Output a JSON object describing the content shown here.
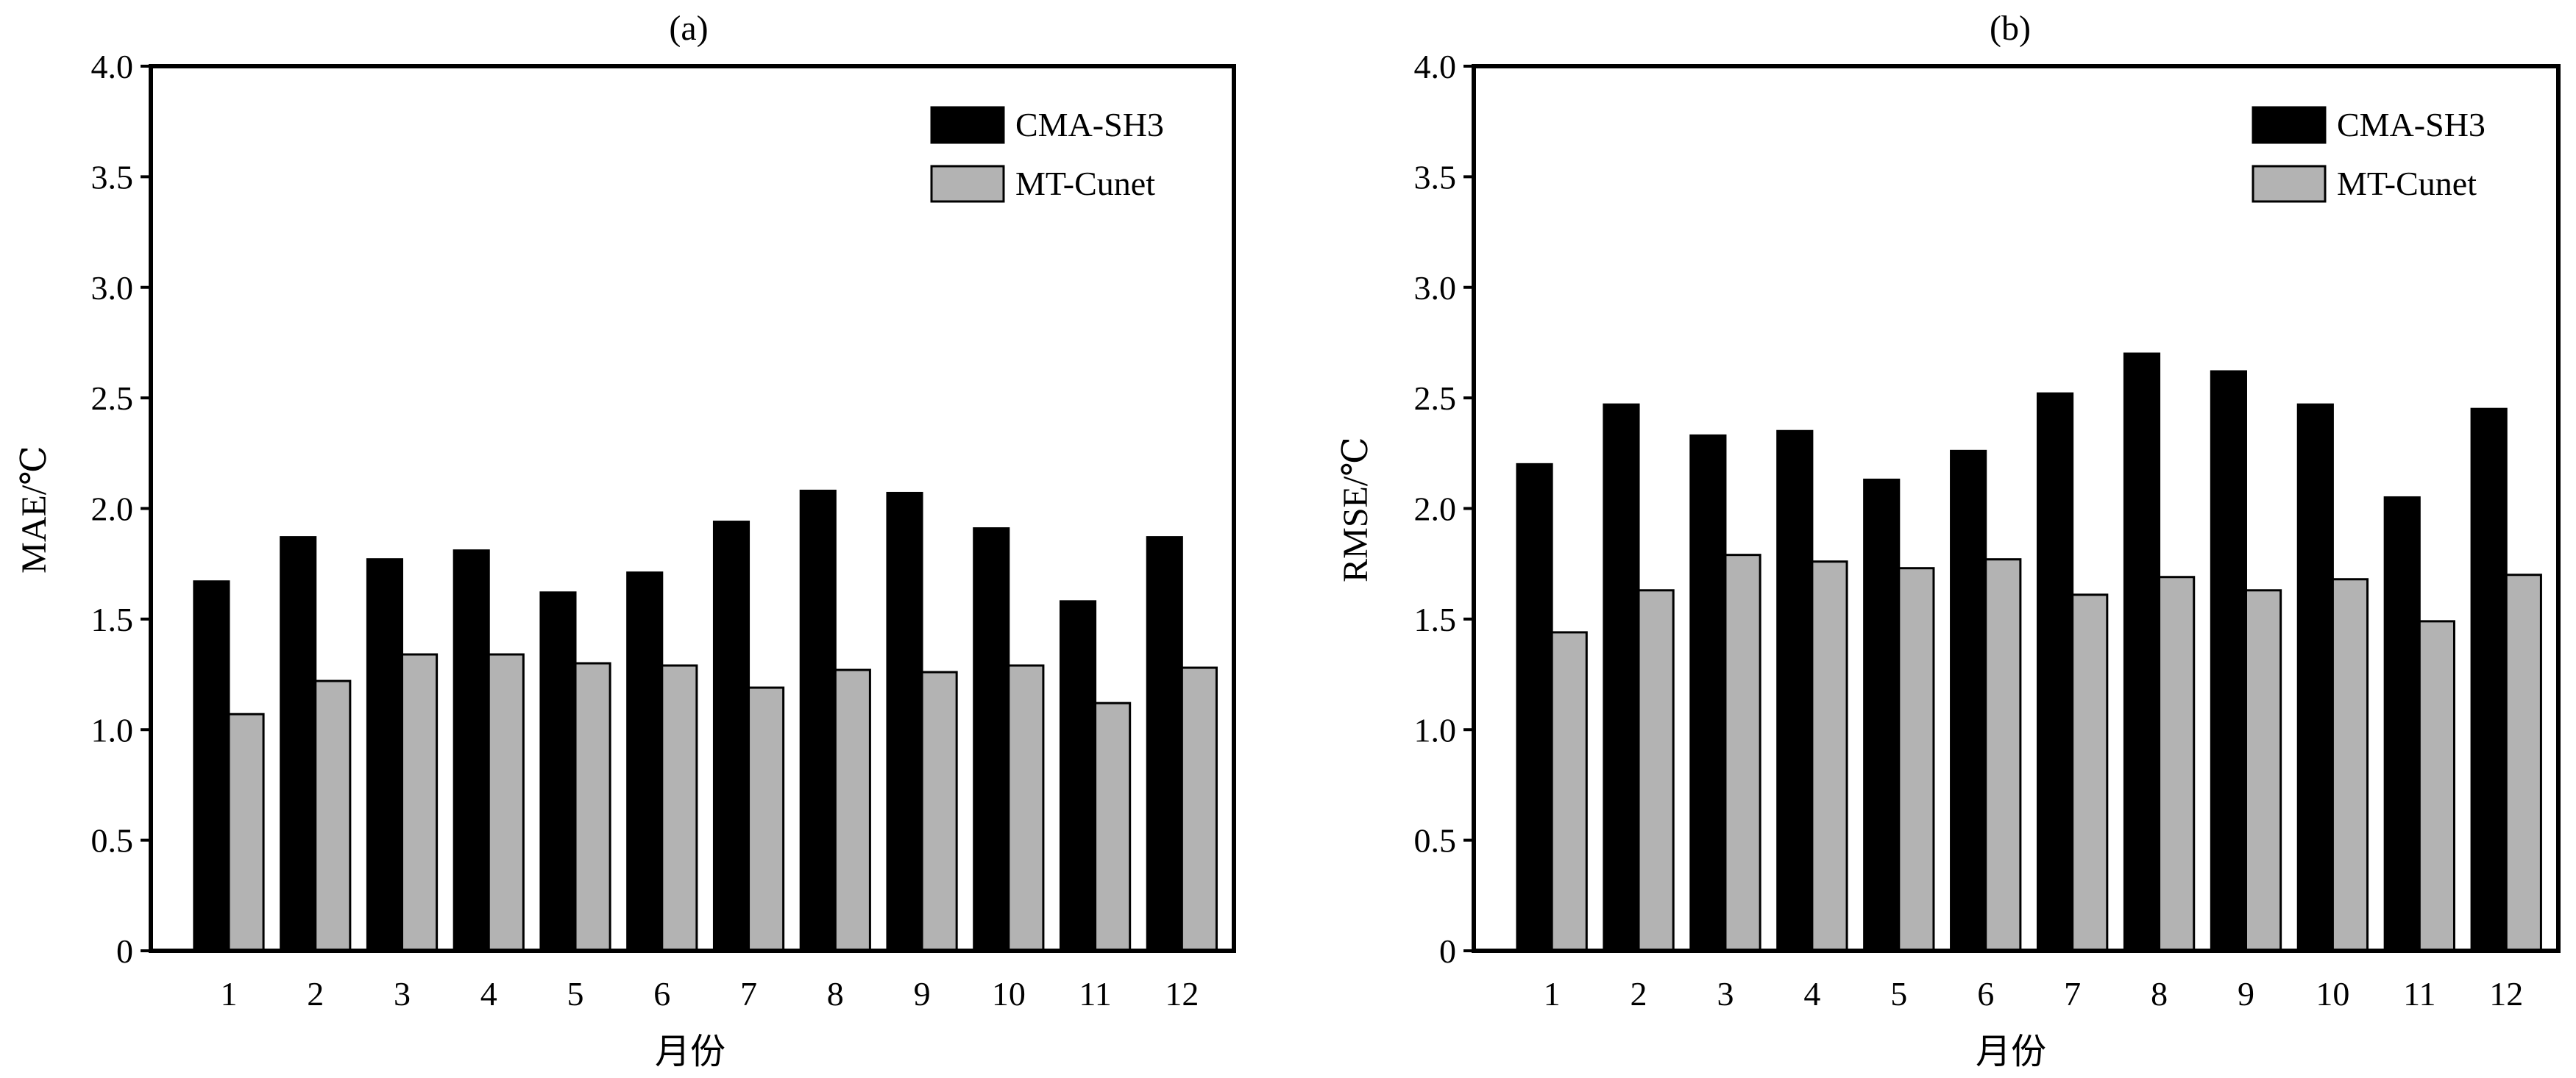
{
  "chart_data": [
    {
      "type": "bar",
      "title": "(a)",
      "xlabel": "月份",
      "ylabel": "MAE/℃",
      "ylim": [
        0,
        4.0
      ],
      "yticks": [
        "0",
        "0.5",
        "1.0",
        "1.5",
        "2.0",
        "2.5",
        "3.0",
        "3.5",
        "4.0"
      ],
      "categories": [
        "1",
        "2",
        "3",
        "4",
        "5",
        "6",
        "7",
        "8",
        "9",
        "10",
        "11",
        "12"
      ],
      "series": [
        {
          "name": "CMA-SH3",
          "color": "#000000",
          "values": [
            1.67,
            1.87,
            1.77,
            1.81,
            1.62,
            1.71,
            1.94,
            2.08,
            2.07,
            1.91,
            1.58,
            1.87
          ]
        },
        {
          "name": "MT-Cunet",
          "color": "#b3b3b3",
          "values": [
            1.07,
            1.22,
            1.34,
            1.34,
            1.3,
            1.29,
            1.19,
            1.27,
            1.26,
            1.29,
            1.12,
            1.28
          ]
        }
      ],
      "legend_position": "top-right",
      "grid": false
    },
    {
      "type": "bar",
      "title": "(b)",
      "xlabel": "月份",
      "ylabel": "RMSE/℃",
      "ylim": [
        0,
        4.0
      ],
      "yticks": [
        "0",
        "0.5",
        "1.0",
        "1.5",
        "2.0",
        "2.5",
        "3.0",
        "3.5",
        "4.0"
      ],
      "categories": [
        "1",
        "2",
        "3",
        "4",
        "5",
        "6",
        "7",
        "8",
        "9",
        "10",
        "11",
        "12"
      ],
      "series": [
        {
          "name": "CMA-SH3",
          "color": "#000000",
          "values": [
            2.2,
            2.47,
            2.33,
            2.35,
            2.13,
            2.26,
            2.52,
            2.7,
            2.62,
            2.47,
            2.05,
            2.45
          ]
        },
        {
          "name": "MT-Cunet",
          "color": "#b3b3b3",
          "values": [
            1.44,
            1.63,
            1.79,
            1.76,
            1.73,
            1.77,
            1.61,
            1.69,
            1.63,
            1.68,
            1.49,
            1.7
          ]
        }
      ],
      "legend_position": "top-right",
      "grid": false
    }
  ]
}
